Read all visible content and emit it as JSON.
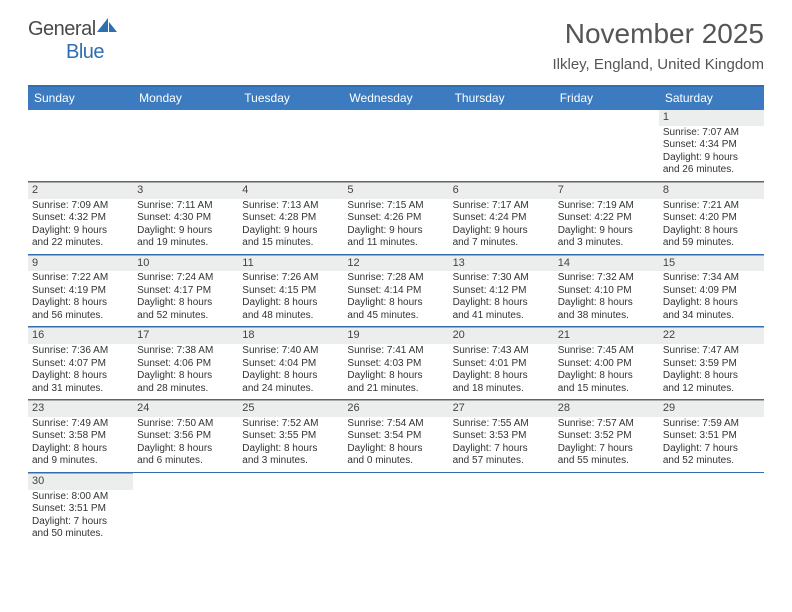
{
  "logo": {
    "text1": "General",
    "text2": "Blue"
  },
  "title": "November 2025",
  "location": "Ilkley, England, United Kingdom",
  "dayHeaders": [
    "Sunday",
    "Monday",
    "Tuesday",
    "Wednesday",
    "Thursday",
    "Friday",
    "Saturday"
  ],
  "colors": {
    "headerBar": "#3c7bc0",
    "rowDivider": "#2f6fb0",
    "dayNumBg": "#eceded"
  },
  "weeks": [
    [
      {
        "empty": true
      },
      {
        "empty": true
      },
      {
        "empty": true
      },
      {
        "empty": true
      },
      {
        "empty": true
      },
      {
        "empty": true
      },
      {
        "num": "1",
        "sunrise": "Sunrise: 7:07 AM",
        "sunset": "Sunset: 4:34 PM",
        "dl1": "Daylight: 9 hours",
        "dl2": "and 26 minutes."
      }
    ],
    [
      {
        "num": "2",
        "sunrise": "Sunrise: 7:09 AM",
        "sunset": "Sunset: 4:32 PM",
        "dl1": "Daylight: 9 hours",
        "dl2": "and 22 minutes."
      },
      {
        "num": "3",
        "sunrise": "Sunrise: 7:11 AM",
        "sunset": "Sunset: 4:30 PM",
        "dl1": "Daylight: 9 hours",
        "dl2": "and 19 minutes."
      },
      {
        "num": "4",
        "sunrise": "Sunrise: 7:13 AM",
        "sunset": "Sunset: 4:28 PM",
        "dl1": "Daylight: 9 hours",
        "dl2": "and 15 minutes."
      },
      {
        "num": "5",
        "sunrise": "Sunrise: 7:15 AM",
        "sunset": "Sunset: 4:26 PM",
        "dl1": "Daylight: 9 hours",
        "dl2": "and 11 minutes."
      },
      {
        "num": "6",
        "sunrise": "Sunrise: 7:17 AM",
        "sunset": "Sunset: 4:24 PM",
        "dl1": "Daylight: 9 hours",
        "dl2": "and 7 minutes."
      },
      {
        "num": "7",
        "sunrise": "Sunrise: 7:19 AM",
        "sunset": "Sunset: 4:22 PM",
        "dl1": "Daylight: 9 hours",
        "dl2": "and 3 minutes."
      },
      {
        "num": "8",
        "sunrise": "Sunrise: 7:21 AM",
        "sunset": "Sunset: 4:20 PM",
        "dl1": "Daylight: 8 hours",
        "dl2": "and 59 minutes."
      }
    ],
    [
      {
        "num": "9",
        "sunrise": "Sunrise: 7:22 AM",
        "sunset": "Sunset: 4:19 PM",
        "dl1": "Daylight: 8 hours",
        "dl2": "and 56 minutes."
      },
      {
        "num": "10",
        "sunrise": "Sunrise: 7:24 AM",
        "sunset": "Sunset: 4:17 PM",
        "dl1": "Daylight: 8 hours",
        "dl2": "and 52 minutes."
      },
      {
        "num": "11",
        "sunrise": "Sunrise: 7:26 AM",
        "sunset": "Sunset: 4:15 PM",
        "dl1": "Daylight: 8 hours",
        "dl2": "and 48 minutes."
      },
      {
        "num": "12",
        "sunrise": "Sunrise: 7:28 AM",
        "sunset": "Sunset: 4:14 PM",
        "dl1": "Daylight: 8 hours",
        "dl2": "and 45 minutes."
      },
      {
        "num": "13",
        "sunrise": "Sunrise: 7:30 AM",
        "sunset": "Sunset: 4:12 PM",
        "dl1": "Daylight: 8 hours",
        "dl2": "and 41 minutes."
      },
      {
        "num": "14",
        "sunrise": "Sunrise: 7:32 AM",
        "sunset": "Sunset: 4:10 PM",
        "dl1": "Daylight: 8 hours",
        "dl2": "and 38 minutes."
      },
      {
        "num": "15",
        "sunrise": "Sunrise: 7:34 AM",
        "sunset": "Sunset: 4:09 PM",
        "dl1": "Daylight: 8 hours",
        "dl2": "and 34 minutes."
      }
    ],
    [
      {
        "num": "16",
        "sunrise": "Sunrise: 7:36 AM",
        "sunset": "Sunset: 4:07 PM",
        "dl1": "Daylight: 8 hours",
        "dl2": "and 31 minutes."
      },
      {
        "num": "17",
        "sunrise": "Sunrise: 7:38 AM",
        "sunset": "Sunset: 4:06 PM",
        "dl1": "Daylight: 8 hours",
        "dl2": "and 28 minutes."
      },
      {
        "num": "18",
        "sunrise": "Sunrise: 7:40 AM",
        "sunset": "Sunset: 4:04 PM",
        "dl1": "Daylight: 8 hours",
        "dl2": "and 24 minutes."
      },
      {
        "num": "19",
        "sunrise": "Sunrise: 7:41 AM",
        "sunset": "Sunset: 4:03 PM",
        "dl1": "Daylight: 8 hours",
        "dl2": "and 21 minutes."
      },
      {
        "num": "20",
        "sunrise": "Sunrise: 7:43 AM",
        "sunset": "Sunset: 4:01 PM",
        "dl1": "Daylight: 8 hours",
        "dl2": "and 18 minutes."
      },
      {
        "num": "21",
        "sunrise": "Sunrise: 7:45 AM",
        "sunset": "Sunset: 4:00 PM",
        "dl1": "Daylight: 8 hours",
        "dl2": "and 15 minutes."
      },
      {
        "num": "22",
        "sunrise": "Sunrise: 7:47 AM",
        "sunset": "Sunset: 3:59 PM",
        "dl1": "Daylight: 8 hours",
        "dl2": "and 12 minutes."
      }
    ],
    [
      {
        "num": "23",
        "sunrise": "Sunrise: 7:49 AM",
        "sunset": "Sunset: 3:58 PM",
        "dl1": "Daylight: 8 hours",
        "dl2": "and 9 minutes."
      },
      {
        "num": "24",
        "sunrise": "Sunrise: 7:50 AM",
        "sunset": "Sunset: 3:56 PM",
        "dl1": "Daylight: 8 hours",
        "dl2": "and 6 minutes."
      },
      {
        "num": "25",
        "sunrise": "Sunrise: 7:52 AM",
        "sunset": "Sunset: 3:55 PM",
        "dl1": "Daylight: 8 hours",
        "dl2": "and 3 minutes."
      },
      {
        "num": "26",
        "sunrise": "Sunrise: 7:54 AM",
        "sunset": "Sunset: 3:54 PM",
        "dl1": "Daylight: 8 hours",
        "dl2": "and 0 minutes."
      },
      {
        "num": "27",
        "sunrise": "Sunrise: 7:55 AM",
        "sunset": "Sunset: 3:53 PM",
        "dl1": "Daylight: 7 hours",
        "dl2": "and 57 minutes."
      },
      {
        "num": "28",
        "sunrise": "Sunrise: 7:57 AM",
        "sunset": "Sunset: 3:52 PM",
        "dl1": "Daylight: 7 hours",
        "dl2": "and 55 minutes."
      },
      {
        "num": "29",
        "sunrise": "Sunrise: 7:59 AM",
        "sunset": "Sunset: 3:51 PM",
        "dl1": "Daylight: 7 hours",
        "dl2": "and 52 minutes."
      }
    ],
    [
      {
        "num": "30",
        "sunrise": "Sunrise: 8:00 AM",
        "sunset": "Sunset: 3:51 PM",
        "dl1": "Daylight: 7 hours",
        "dl2": "and 50 minutes."
      },
      {
        "empty": true
      },
      {
        "empty": true
      },
      {
        "empty": true
      },
      {
        "empty": true
      },
      {
        "empty": true
      },
      {
        "empty": true
      }
    ]
  ]
}
